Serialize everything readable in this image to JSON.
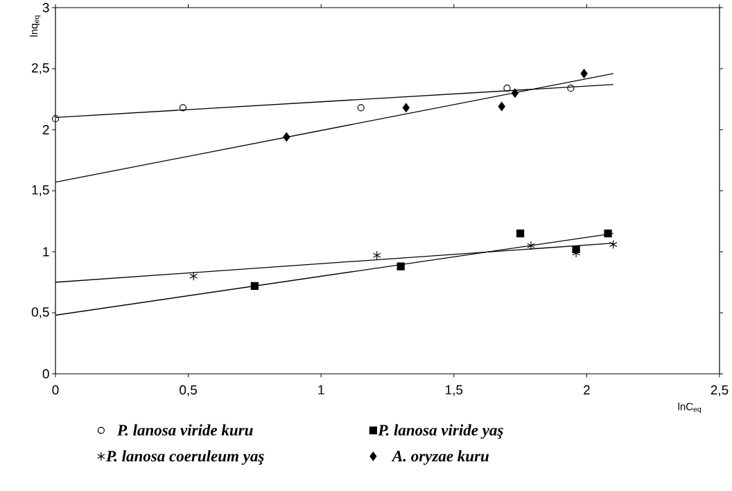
{
  "chart_data": {
    "type": "scatter",
    "xlabel": "lnC$_{eq}$",
    "ylabel": "lnq$_{eq}$",
    "xlim": [
      0,
      2.5
    ],
    "ylim": [
      0,
      3
    ],
    "xticks": [
      {
        "value": 0,
        "label": "0"
      },
      {
        "value": 0.5,
        "label": "0,5"
      },
      {
        "value": 1,
        "label": "1"
      },
      {
        "value": 1.5,
        "label": "1,5"
      },
      {
        "value": 2,
        "label": "2"
      },
      {
        "value": 2.5,
        "label": "2,5"
      }
    ],
    "yticks": [
      {
        "value": 0,
        "label": "0"
      },
      {
        "value": 0.5,
        "label": "0,5"
      },
      {
        "value": 1,
        "label": "1"
      },
      {
        "value": 1.5,
        "label": "1,5"
      },
      {
        "value": 2,
        "label": "2"
      },
      {
        "value": 2.5,
        "label": "2,5"
      },
      {
        "value": 3,
        "label": "3"
      }
    ],
    "legend": "bottom",
    "grid": false,
    "series": [
      {
        "name": "P. lanosa viride kuru",
        "marker": "circle",
        "color": "#000000",
        "x": [
          0,
          0.48,
          1.15,
          1.7,
          1.94
        ],
        "values": [
          2.09,
          2.18,
          2.18,
          2.34,
          2.34
        ]
      },
      {
        "name": "P. lanosa viride yaş",
        "marker": "square",
        "color": "#000000",
        "x": [
          0.75,
          1.3,
          1.75,
          1.96,
          2.08
        ],
        "values": [
          0.72,
          0.88,
          1.15,
          1.02,
          1.15
        ]
      },
      {
        "name": "P. lanosa coeruleum yaş",
        "marker": "cross",
        "color": "#000000",
        "x": [
          0.52,
          1.21,
          1.79,
          1.96,
          2.1
        ],
        "values": [
          0.8,
          0.97,
          1.05,
          0.99,
          1.06
        ]
      },
      {
        "name": "A. oryzae kuru",
        "marker": "diamond",
        "color": "#000000",
        "x": [
          0.87,
          1.32,
          1.68,
          1.73,
          1.99
        ],
        "values": [
          1.94,
          2.18,
          2.19,
          2.3,
          2.46
        ]
      },
      {
        "type": "line",
        "marker": "none",
        "color": "#000000",
        "x": [
          0,
          2.1
        ],
        "values": [
          2.1,
          2.37
        ]
      },
      {
        "type": "line",
        "marker": "none",
        "color": "#000000",
        "x": [
          0,
          2.1
        ],
        "values": [
          0.48,
          1.15
        ]
      },
      {
        "type": "line",
        "marker": "none",
        "color": "#000000",
        "x": [
          0,
          2.1
        ],
        "values": [
          0.75,
          1.07
        ]
      },
      {
        "type": "line",
        "marker": "none",
        "color": "#000000",
        "x": [
          0,
          2.1
        ],
        "values": [
          1.57,
          2.46
        ]
      }
    ]
  }
}
